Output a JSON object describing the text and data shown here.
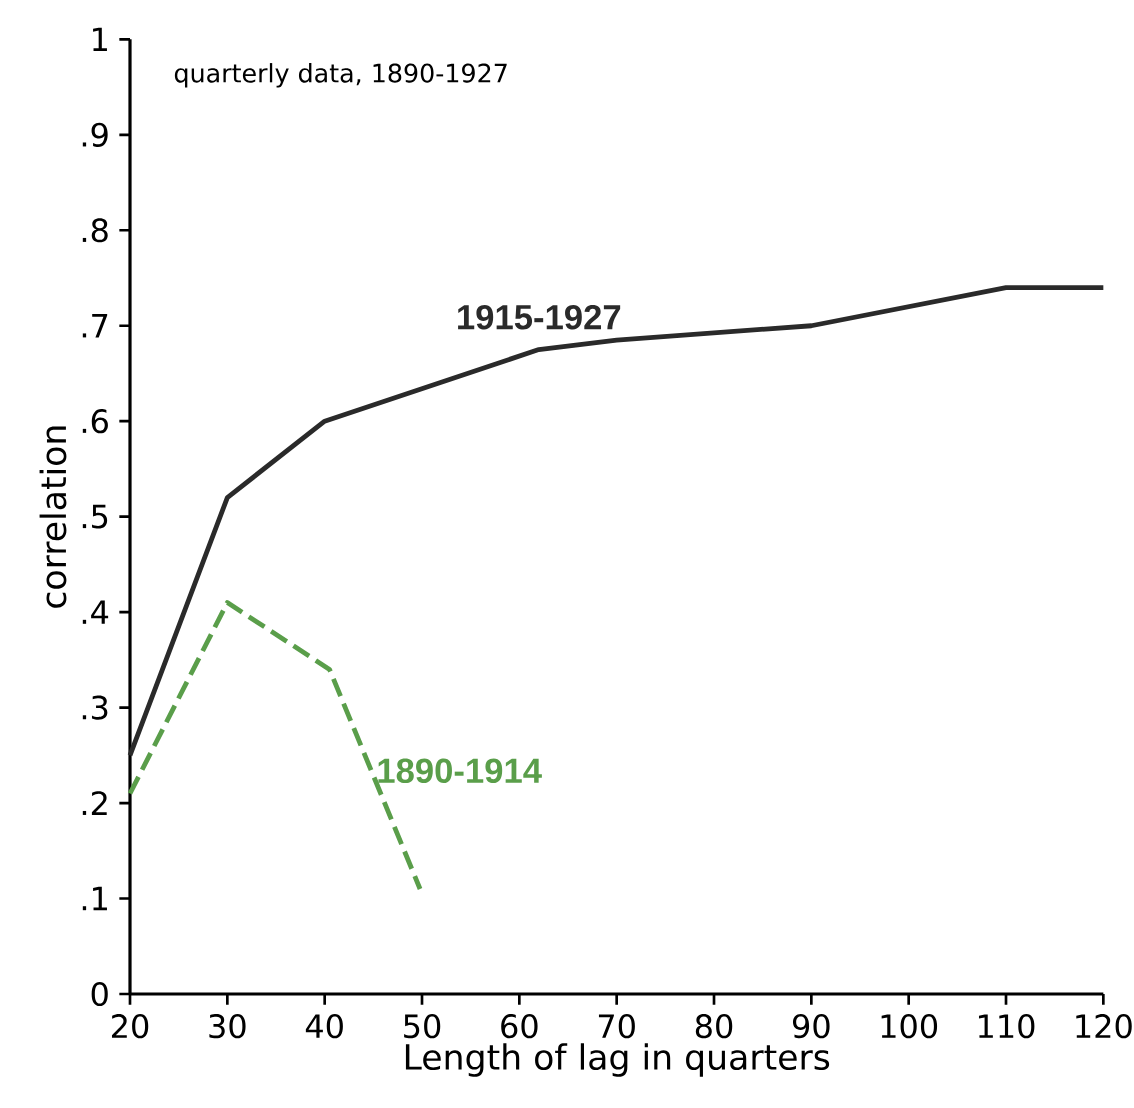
{
  "chart_data": {
    "type": "line",
    "xlabel": "Length of lag in quarters",
    "ylabel": "correlation",
    "annotations": [
      "quarterly data, 1890-1927"
    ],
    "series": [
      {
        "name": "1915-1927",
        "color": "#2a2a2a",
        "line_style": "solid",
        "x": [
          20,
          30,
          40,
          62,
          70,
          90,
          110,
          120
        ],
        "values": [
          0.25,
          0.52,
          0.6,
          0.675,
          0.685,
          0.7,
          0.74,
          0.74
        ]
      },
      {
        "name": "1890-1914",
        "color": "#5a9e4a",
        "line_style": "dashed",
        "x": [
          20,
          30,
          40.5,
          49.8
        ],
        "values": [
          0.21,
          0.41,
          0.34,
          0.11
        ]
      }
    ],
    "xlim": [
      20,
      120
    ],
    "ylim": [
      0,
      1
    ],
    "xticks": [
      20,
      30,
      40,
      50,
      60,
      70,
      80,
      90,
      100,
      110,
      120
    ],
    "yticks": [
      0,
      {
        "value": 0.1,
        "label": ".1"
      },
      {
        "value": 0.2,
        "label": ".2"
      },
      {
        "value": 0.3,
        "label": ".3"
      },
      {
        "value": 0.4,
        "label": ".4"
      },
      {
        "value": 0.5,
        "label": ".5"
      },
      {
        "value": 0.6,
        "label": ".6"
      },
      {
        "value": 0.7,
        "label": ".7"
      },
      {
        "value": 0.8,
        "label": ".8"
      },
      {
        "value": 0.9,
        "label": ".9"
      },
      1
    ],
    "legend": false,
    "grid": false,
    "marker": "none"
  }
}
